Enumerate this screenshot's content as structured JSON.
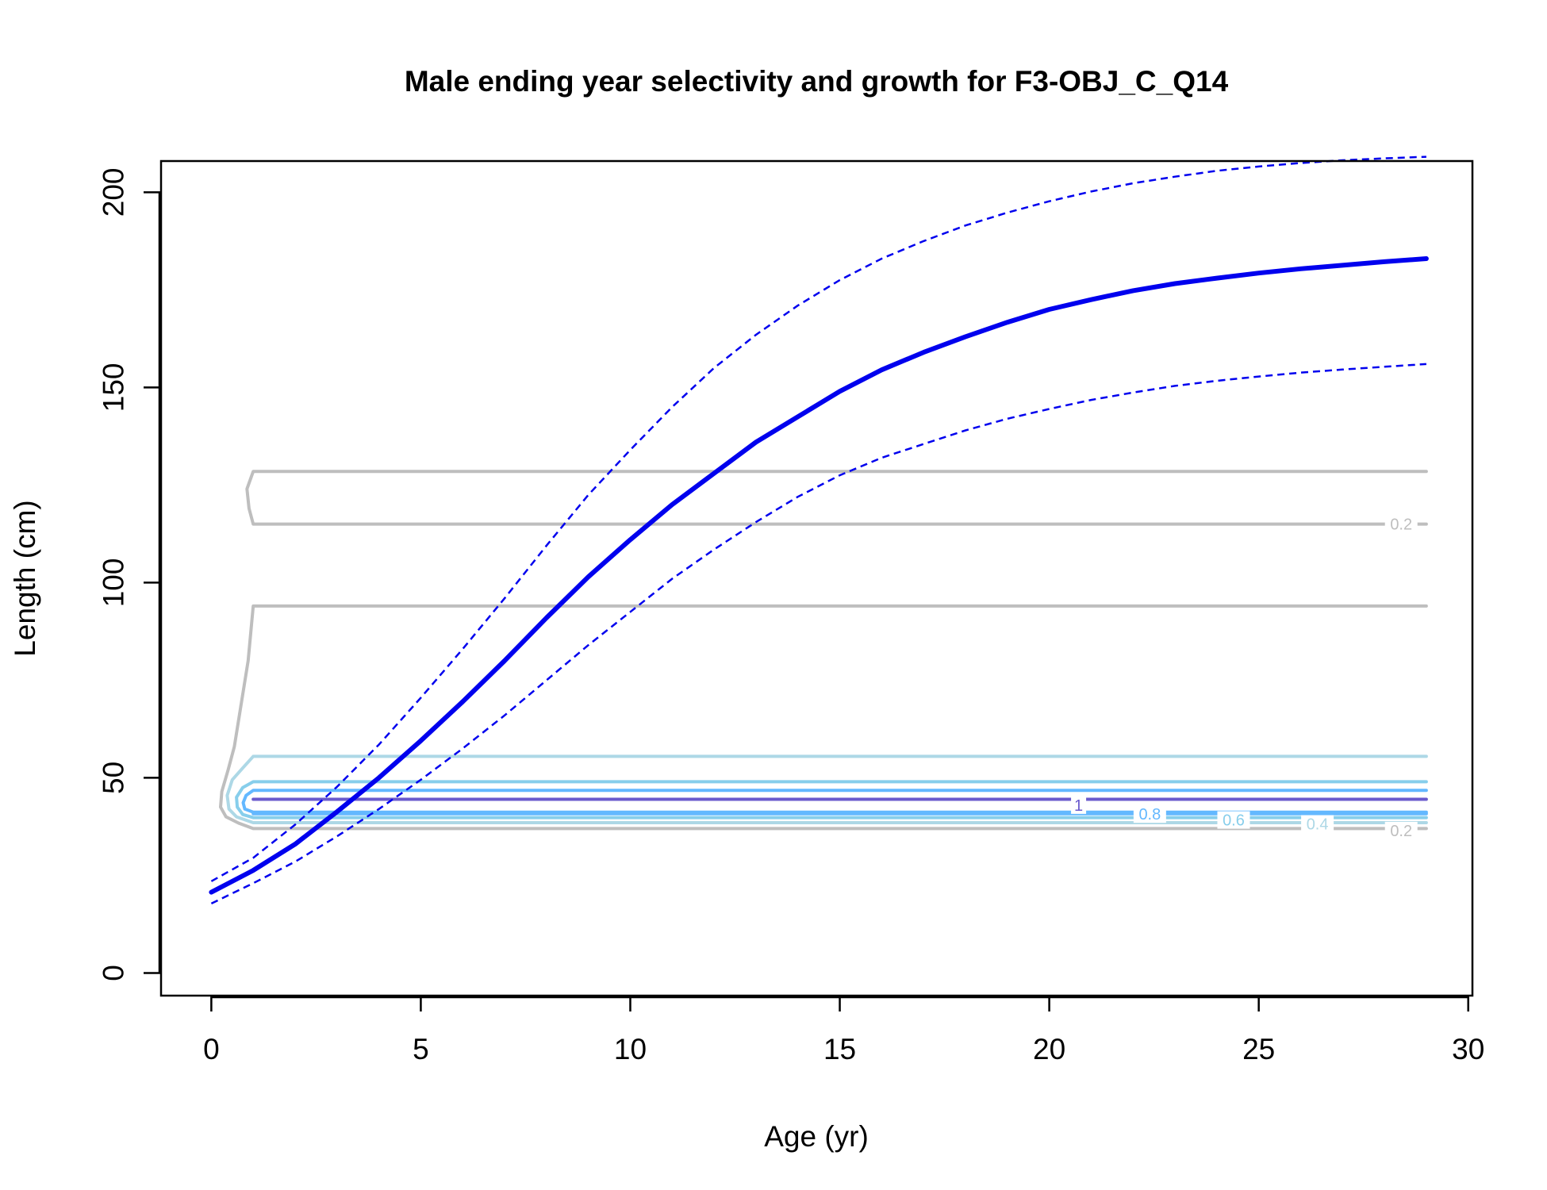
{
  "chart_data": {
    "type": "line",
    "title": "Male ending year selectivity and growth for F3-OBJ_C_Q14",
    "xlabel": "Age (yr)",
    "ylabel": "Length (cm)",
    "xlim": [
      -1.2,
      30.1
    ],
    "ylim": [
      -5.8,
      208
    ],
    "xticks": [
      0,
      5,
      10,
      15,
      20,
      25,
      30
    ],
    "yticks": [
      0,
      50,
      100,
      150,
      200
    ],
    "grid": false,
    "growth": {
      "age": [
        0,
        1,
        2,
        3,
        4,
        5,
        6,
        7,
        8,
        9,
        10,
        11,
        12,
        13,
        14,
        15,
        16,
        17,
        18,
        19,
        20,
        21,
        22,
        23,
        24,
        25,
        26,
        27,
        28,
        29
      ],
      "mean_length": [
        20.7,
        26.3,
        33,
        41.3,
        50,
        59.5,
        69.5,
        80,
        91,
        101.5,
        111,
        120,
        128,
        136,
        142.5,
        149,
        154.5,
        159,
        163,
        166.7,
        170,
        172.5,
        174.8,
        176.6,
        178,
        179.3,
        180.4,
        181.3,
        182.2,
        183
      ],
      "upper_length": [
        23.5,
        29.5,
        38,
        47.7,
        58.5,
        70.5,
        83,
        96,
        109.5,
        122.5,
        134,
        145,
        155,
        163.5,
        171,
        177.5,
        183,
        187.5,
        191.5,
        194.8,
        197.7,
        200.2,
        202.3,
        204,
        205.5,
        206.6,
        207.5,
        208.2,
        208.7,
        209.1
      ],
      "lower_length": [
        17.8,
        23,
        28.5,
        35,
        42,
        49.5,
        57.5,
        66,
        75,
        84,
        92.5,
        101,
        108.5,
        115.5,
        122,
        127.5,
        132,
        135.5,
        139,
        142,
        144.5,
        146.8,
        148.7,
        150.4,
        151.7,
        152.8,
        153.8,
        154.6,
        155.3,
        156
      ]
    },
    "series": [
      {
        "color": "#0000ee",
        "style": "solid",
        "width": "thick"
      },
      {
        "color": "#0000ee",
        "style": "dashed"
      },
      {
        "color": "#0000ee",
        "style": "dashed"
      }
    ],
    "selectivity_contours": [
      {
        "level": 0.2,
        "color": "#bebebe",
        "labels": [
          "0.2",
          "0.2"
        ],
        "label_x": 28.4,
        "label_y": [
          115,
          36.5
        ]
      },
      {
        "level": 0.4,
        "color": "#add8e6",
        "labels": [
          "0.4"
        ],
        "label_x": 26.4,
        "label_y": [
          38.2
        ]
      },
      {
        "level": 0.6,
        "color": "#87ceeb",
        "labels": [
          "0.6"
        ],
        "label_x": 24.4,
        "label_y": [
          39.2
        ]
      },
      {
        "level": 0.8,
        "color": "#63b8ff",
        "labels": [
          "0.8"
        ],
        "label_x": 22.4,
        "label_y": [
          40.7
        ]
      },
      {
        "level": 1,
        "color": "#6a5acd",
        "labels": [
          "1"
        ],
        "label_x": 20.7,
        "label_y": [
          43
        ]
      }
    ]
  }
}
